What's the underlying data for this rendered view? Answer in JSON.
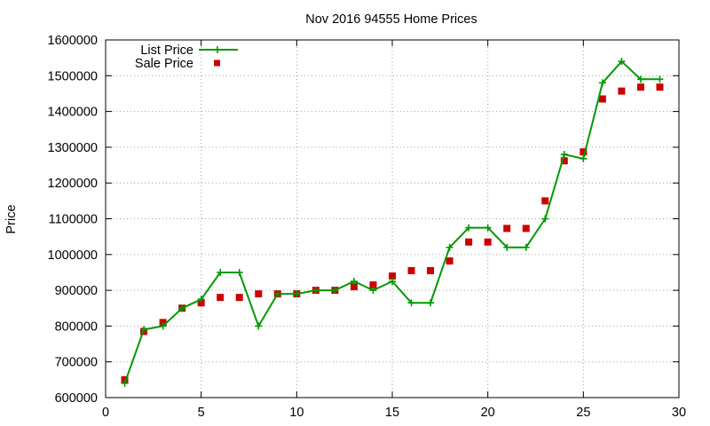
{
  "chart_data": {
    "type": "line",
    "title": "Nov 2016 94555 Home Prices",
    "xlabel": "",
    "ylabel": "Price",
    "xlim": [
      0,
      30
    ],
    "ylim": [
      600000,
      1600000
    ],
    "x_ticks": [
      0,
      5,
      10,
      15,
      20,
      25,
      30
    ],
    "y_ticks": [
      600000,
      700000,
      800000,
      900000,
      1000000,
      1100000,
      1200000,
      1300000,
      1400000,
      1500000,
      1600000
    ],
    "grid": true,
    "legend_position": "top-left",
    "series": [
      {
        "name": "List Price",
        "style": "line with plus markers",
        "color": "#009900",
        "x": [
          1,
          2,
          3,
          4,
          5,
          6,
          7,
          8,
          9,
          10,
          11,
          12,
          13,
          14,
          15,
          16,
          17,
          18,
          19,
          20,
          21,
          22,
          23,
          24,
          25,
          26,
          27,
          28,
          29
        ],
        "values": [
          640000,
          790000,
          800000,
          850000,
          875000,
          950000,
          950000,
          800000,
          890000,
          890000,
          900000,
          900000,
          925000,
          900000,
          925000,
          865000,
          865000,
          1020000,
          1075000,
          1075000,
          1020000,
          1020000,
          1100000,
          1280000,
          1268000,
          1480000,
          1540000,
          1490000,
          1490000
        ]
      },
      {
        "name": "Sale Price",
        "style": "square points",
        "color": "#cc0000",
        "x": [
          1,
          2,
          3,
          4,
          5,
          6,
          7,
          8,
          9,
          10,
          11,
          12,
          13,
          14,
          15,
          16,
          17,
          18,
          19,
          20,
          21,
          22,
          23,
          24,
          25,
          26,
          27,
          28,
          29
        ],
        "values": [
          650000,
          785000,
          810000,
          850000,
          865000,
          880000,
          880000,
          890000,
          890000,
          890000,
          900000,
          900000,
          910000,
          915000,
          940000,
          955000,
          955000,
          982000,
          1035000,
          1035000,
          1073000,
          1073000,
          1150000,
          1262000,
          1287000,
          1435000,
          1457000,
          1468000,
          1468000
        ]
      }
    ]
  }
}
